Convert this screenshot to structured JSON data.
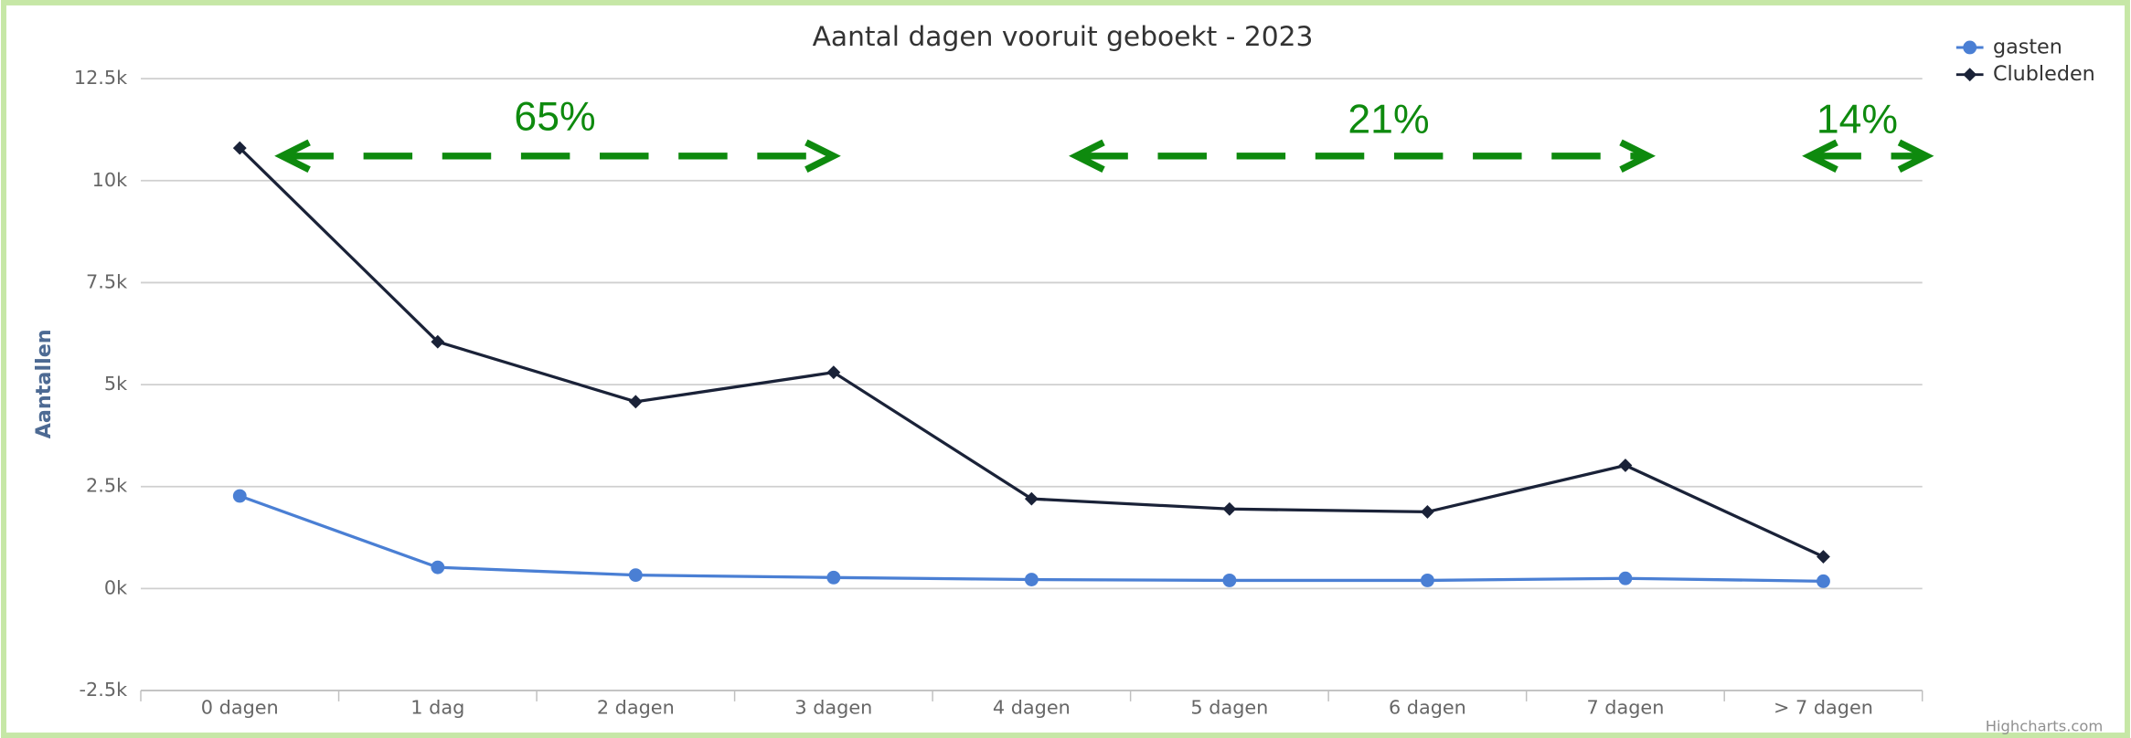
{
  "chart_data": {
    "type": "line",
    "title": "Aantal dagen vooruit geboekt - 2023",
    "y_label": "Aantallen",
    "credit": "Highcharts.com",
    "categories": [
      "0 dagen",
      "1 dag",
      "2 dagen",
      "3 dagen",
      "4 dagen",
      "5 dagen",
      "6 dagen",
      "7 dagen",
      "> 7 dagen"
    ],
    "series": [
      {
        "name": "gasten",
        "color": "#4a7fd4",
        "marker": "circle",
        "values": [
          2270,
          520,
          330,
          270,
          220,
          200,
          200,
          250,
          180
        ]
      },
      {
        "name": "Clubleden",
        "color": "#1a2238",
        "marker": "diamond",
        "values": [
          10800,
          6050,
          4580,
          5300,
          2200,
          1950,
          1880,
          3020,
          780
        ]
      }
    ],
    "ylim": [
      -2500,
      12500
    ],
    "yticks": [
      {
        "value": -2500,
        "label": "-2.5k"
      },
      {
        "value": 0,
        "label": "0k"
      },
      {
        "value": 2500,
        "label": "2.5k"
      },
      {
        "value": 5000,
        "label": "5k"
      },
      {
        "value": 7500,
        "label": "7.5k"
      },
      {
        "value": 10000,
        "label": "10k"
      },
      {
        "value": 12500,
        "label": "12.5k"
      }
    ],
    "grid": true,
    "legend": "top-right",
    "annotations": [
      "65%",
      "21%",
      "14%"
    ],
    "annotation_color": "#0e8a0e"
  }
}
